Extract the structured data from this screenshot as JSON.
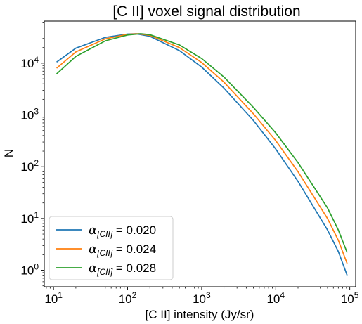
{
  "chart_data": {
    "type": "line",
    "title": "[C II] voxel signal distribution",
    "xlabel": "[C II] intensity (Jy/sr)",
    "ylabel": "N",
    "xscale": "log",
    "yscale": "log",
    "xlim": [
      7.5,
      120000
    ],
    "ylim": [
      0.48,
      65000
    ],
    "xticks": [
      {
        "value": 10,
        "base": "10",
        "exp": "1"
      },
      {
        "value": 100,
        "base": "10",
        "exp": "2"
      },
      {
        "value": 1000,
        "base": "10",
        "exp": "3"
      },
      {
        "value": 10000,
        "base": "10",
        "exp": "4"
      },
      {
        "value": 100000,
        "base": "10",
        "exp": "5"
      }
    ],
    "yticks": [
      {
        "value": 1,
        "base": "10",
        "exp": "0"
      },
      {
        "value": 10,
        "base": "10",
        "exp": "1"
      },
      {
        "value": 100,
        "base": "10",
        "exp": "2"
      },
      {
        "value": 1000,
        "base": "10",
        "exp": "3"
      },
      {
        "value": 10000,
        "base": "10",
        "exp": "4"
      }
    ],
    "grid": false,
    "legend_position": "lower-left",
    "series": [
      {
        "name": "α[CII] = 0.020",
        "legend": {
          "symbol": "α",
          "subscript": "[CII]",
          "rest": " = 0.020"
        },
        "color": "#1f77b4",
        "x": [
          11,
          20,
          50,
          100,
          130,
          200,
          500,
          1000,
          2000,
          5000,
          10000,
          20000,
          50000,
          70000,
          92000
        ],
        "y": [
          10500,
          19500,
          31500,
          36500,
          37000,
          33000,
          17500,
          8400,
          3300,
          780,
          220,
          52,
          6.0,
          2.3,
          0.8
        ]
      },
      {
        "name": "α[CII] = 0.024",
        "legend": {
          "symbol": "α",
          "subscript": "[CII]",
          "rest": " = 0.024"
        },
        "color": "#ff7f0e",
        "x": [
          11,
          20,
          50,
          100,
          140,
          200,
          500,
          1000,
          2000,
          5000,
          10000,
          20000,
          50000,
          70000,
          92000
        ],
        "y": [
          8000,
          16500,
          29500,
          36000,
          37000,
          34500,
          20000,
          10300,
          4300,
          1050,
          320,
          80,
          10.0,
          3.8,
          1.35
        ]
      },
      {
        "name": "α[CII] = 0.028",
        "legend": {
          "symbol": "α",
          "subscript": "[CII]",
          "rest": " = 0.028"
        },
        "color": "#2ca02c",
        "x": [
          11,
          20,
          50,
          100,
          150,
          200,
          500,
          1000,
          2000,
          5000,
          10000,
          20000,
          50000,
          70000,
          92000
        ],
        "y": [
          6200,
          13500,
          27000,
          35000,
          37000,
          35500,
          22500,
          12300,
          5400,
          1400,
          450,
          120,
          16.0,
          6.0,
          2.2
        ]
      }
    ]
  }
}
